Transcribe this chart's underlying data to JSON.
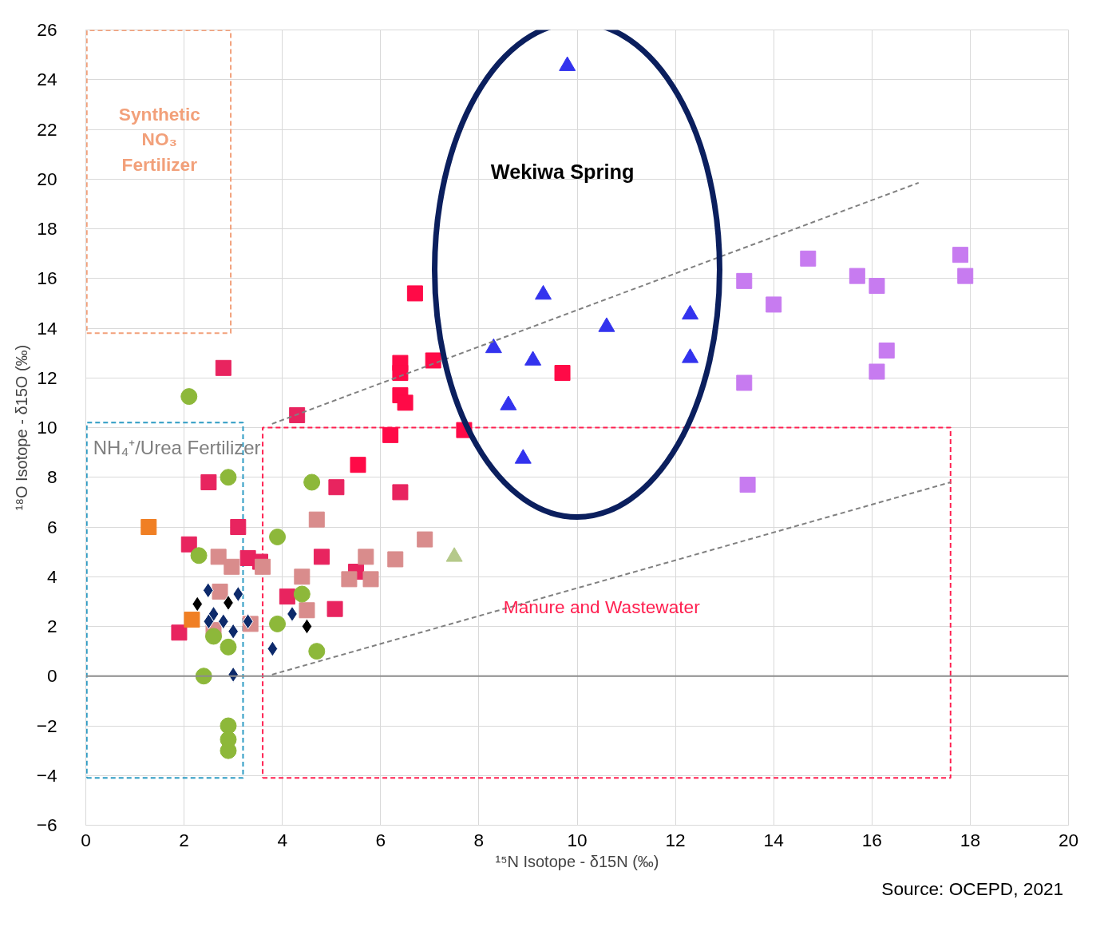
{
  "chart_data": {
    "type": "scatter",
    "xlabel": "¹⁵N Isotope - δ15N (‰)",
    "ylabel": "¹⁸O Isotope - δ15O (‰)",
    "xlim": [
      0,
      20
    ],
    "ylim": [
      -6,
      26
    ],
    "xticks": [
      0,
      2,
      4,
      6,
      8,
      10,
      12,
      14,
      16,
      18,
      20
    ],
    "yticks": [
      -6,
      -4,
      -2,
      0,
      2,
      4,
      6,
      8,
      10,
      12,
      14,
      16,
      18,
      20,
      22,
      24,
      26
    ],
    "grid": true,
    "ref_lines": [
      {
        "axis": "y",
        "value": 0,
        "color": "#8c8c8c"
      }
    ],
    "annotations": [
      "Synthetic\nNO₃\nFertilizer",
      "NH₄⁺/Urea Fertilizer",
      "Manure and Wastewater",
      "Wekiwa Spring",
      "Source:  OCEPD, 2021"
    ],
    "series": [
      {
        "marker": "triangle",
        "color": "#3333ee",
        "x": [
          9.8,
          9.31,
          8.3,
          9.1,
          10.6,
          12.3,
          12.3,
          8.6,
          8.9
        ],
        "values": [
          24.55,
          15.35,
          13.2,
          12.7,
          14.05,
          14.55,
          12.8,
          10.9,
          8.75
        ]
      },
      {
        "marker": "square",
        "color": "#ff0a47",
        "x": [
          6.7,
          6.4,
          6.4,
          7.07,
          6.4,
          6.5,
          6.2,
          7.7,
          5.54,
          9.7
        ],
        "values": [
          15.4,
          12.6,
          12.2,
          12.7,
          11.3,
          11.0,
          9.7,
          9.9,
          8.5,
          12.2
        ]
      },
      {
        "marker": "square",
        "color": "#e8245f",
        "x": [
          2.8,
          4.3,
          2.5,
          5.1,
          6.4,
          2.1,
          3.1,
          3.3,
          3.55,
          4.8,
          5.5,
          4.1,
          5.07,
          1.9
        ],
        "values": [
          12.4,
          10.5,
          7.8,
          7.6,
          7.4,
          5.3,
          6.0,
          4.75,
          4.6,
          4.8,
          4.2,
          3.2,
          2.7,
          1.75
        ]
      },
      {
        "marker": "square",
        "color": "#d98c8c",
        "x": [
          4.7,
          2.7,
          2.97,
          3.6,
          4.4,
          5.7,
          5.36,
          5.8,
          6.3,
          6.9,
          2.73,
          4.5,
          3.35,
          2.6
        ],
        "values": [
          6.3,
          4.8,
          4.4,
          4.4,
          4.0,
          4.8,
          3.9,
          3.9,
          4.7,
          5.5,
          3.4,
          2.65,
          2.1,
          1.85
        ]
      },
      {
        "marker": "circle",
        "color": "#8db83a",
        "x": [
          2.1,
          2.9,
          4.6,
          3.9,
          2.3,
          4.4,
          3.9,
          4.7,
          2.9,
          2.6,
          2.4,
          2.9,
          2.9,
          2.9
        ],
        "values": [
          11.25,
          8.0,
          7.8,
          5.6,
          4.85,
          3.3,
          2.1,
          1.0,
          1.17,
          1.6,
          0,
          -2.0,
          -2.55,
          -3.0
        ]
      },
      {
        "marker": "diamond",
        "color": "#0d2a6b",
        "x": [
          2.49,
          3.1,
          2.6,
          2.8,
          3.0,
          3.3,
          4.2,
          3.8,
          3.0,
          2.5
        ],
        "values": [
          3.45,
          3.3,
          2.5,
          2.2,
          1.8,
          2.2,
          2.5,
          1.1,
          0.06,
          2.2
        ]
      },
      {
        "marker": "diamond",
        "color": "#000000",
        "x": [
          2.27,
          2.9,
          4.5
        ],
        "values": [
          2.9,
          2.95,
          2.0
        ]
      },
      {
        "marker": "square",
        "color": "#f07f24",
        "x": [
          1.28,
          2.16
        ],
        "values": [
          6.0,
          2.27
        ]
      },
      {
        "marker": "triangle",
        "color": "#b5c98a",
        "x": [
          7.5
        ],
        "values": [
          4.8
        ]
      },
      {
        "marker": "square",
        "color": "#c77bf0",
        "x": [
          13.4,
          14.7,
          14.0,
          15.7,
          16.1,
          17.8,
          17.9,
          16.3,
          16.1,
          13.4,
          13.47
        ],
        "values": [
          15.9,
          16.8,
          14.95,
          16.1,
          15.7,
          16.95,
          16.1,
          13.1,
          12.25,
          11.8,
          7.7
        ]
      },
      {
        "type": "line",
        "line_style": "dashed",
        "color": "#808080",
        "x": [
          3.79,
          16.95
        ],
        "values": [
          10.15,
          19.85
        ]
      },
      {
        "type": "line",
        "line_style": "dashed",
        "color": "#808080",
        "x": [
          3.79,
          17.6
        ],
        "values": [
          0.06,
          7.8
        ]
      }
    ]
  }
}
